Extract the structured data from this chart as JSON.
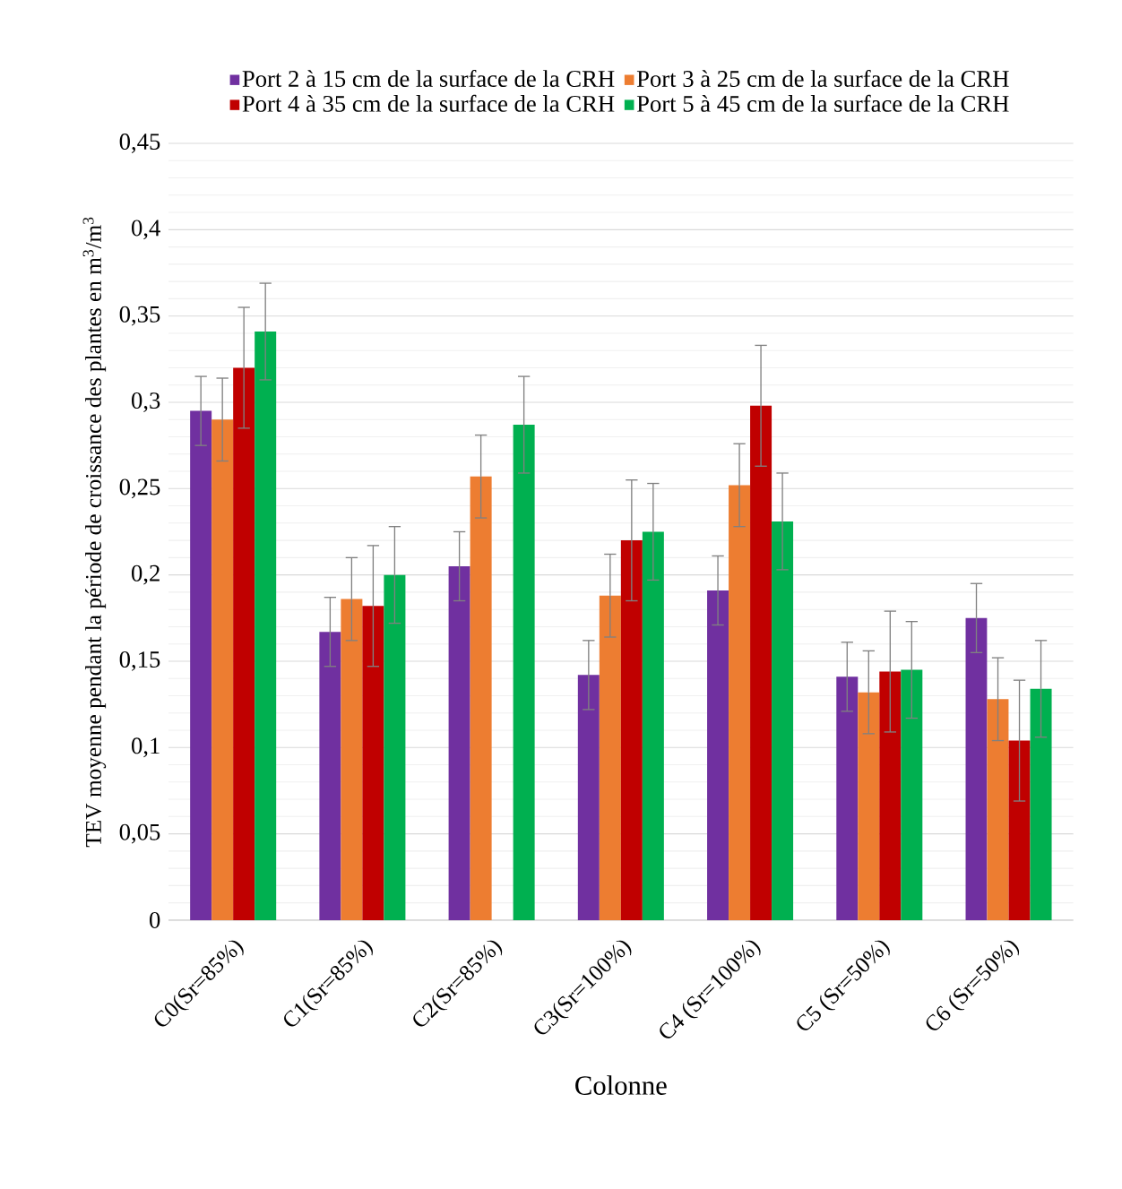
{
  "chart_data": {
    "type": "bar",
    "xlabel": "Colonne",
    "ylabel": "TEV  moyenne  pendant la période  de croissance des plantes en  m$^{3}$/m$^{3}$",
    "categories": [
      "C0(Sr=85%)",
      "C1(Sr=85%)",
      "C2(Sr=85%)",
      "C3(Sr=100%)",
      "C4 (Sr=100%)",
      "C5 (Sr=50%)",
      "C6 (Sr=50%)"
    ],
    "series": [
      {
        "name": "Port 2 à 15 cm de la surface de la CRH",
        "color": "#7030a0",
        "values": [
          0.295,
          0.167,
          0.205,
          0.142,
          0.191,
          0.141,
          0.175
        ],
        "errors": [
          0.02,
          0.02,
          0.02,
          0.02,
          0.02,
          0.02,
          0.02
        ]
      },
      {
        "name": "Port 3 à 25 cm de la surface de la CRH",
        "color": "#ed7d31",
        "values": [
          0.29,
          0.186,
          0.257,
          0.188,
          0.252,
          0.132,
          0.128
        ],
        "errors": [
          0.024,
          0.024,
          0.024,
          0.024,
          0.024,
          0.024,
          0.024
        ]
      },
      {
        "name": "Port 4 à 35 cm de la surface de la CRH",
        "color": "#c00000",
        "values": [
          0.32,
          0.182,
          null,
          0.22,
          0.298,
          0.144,
          0.104
        ],
        "errors": [
          0.035,
          0.035,
          null,
          0.035,
          0.035,
          0.035,
          0.035
        ]
      },
      {
        "name": "Port 5 à 45 cm de la surface de la CRH",
        "color": "#00b050",
        "values": [
          0.341,
          0.2,
          0.287,
          0.225,
          0.231,
          0.145,
          0.134
        ],
        "errors": [
          0.028,
          0.028,
          0.028,
          0.028,
          0.028,
          0.028,
          0.028
        ]
      }
    ],
    "ylim": [
      0,
      0.45
    ],
    "yticks": [
      0,
      {
        "value": 0.05,
        "label": "0,05"
      },
      {
        "value": 0.1,
        "label": "0,1"
      },
      {
        "value": 0.15,
        "label": "0,15"
      },
      {
        "value": 0.2,
        "label": "0,2"
      },
      {
        "value": 0.25,
        "label": "0,25"
      },
      {
        "value": 0.3,
        "label": "0,3"
      },
      {
        "value": 0.35,
        "label": "0,35"
      },
      {
        "value": 0.4,
        "label": "0,4"
      },
      {
        "value": 0.45,
        "label": "0,45"
      }
    ],
    "grid": "y",
    "legend": "top"
  }
}
